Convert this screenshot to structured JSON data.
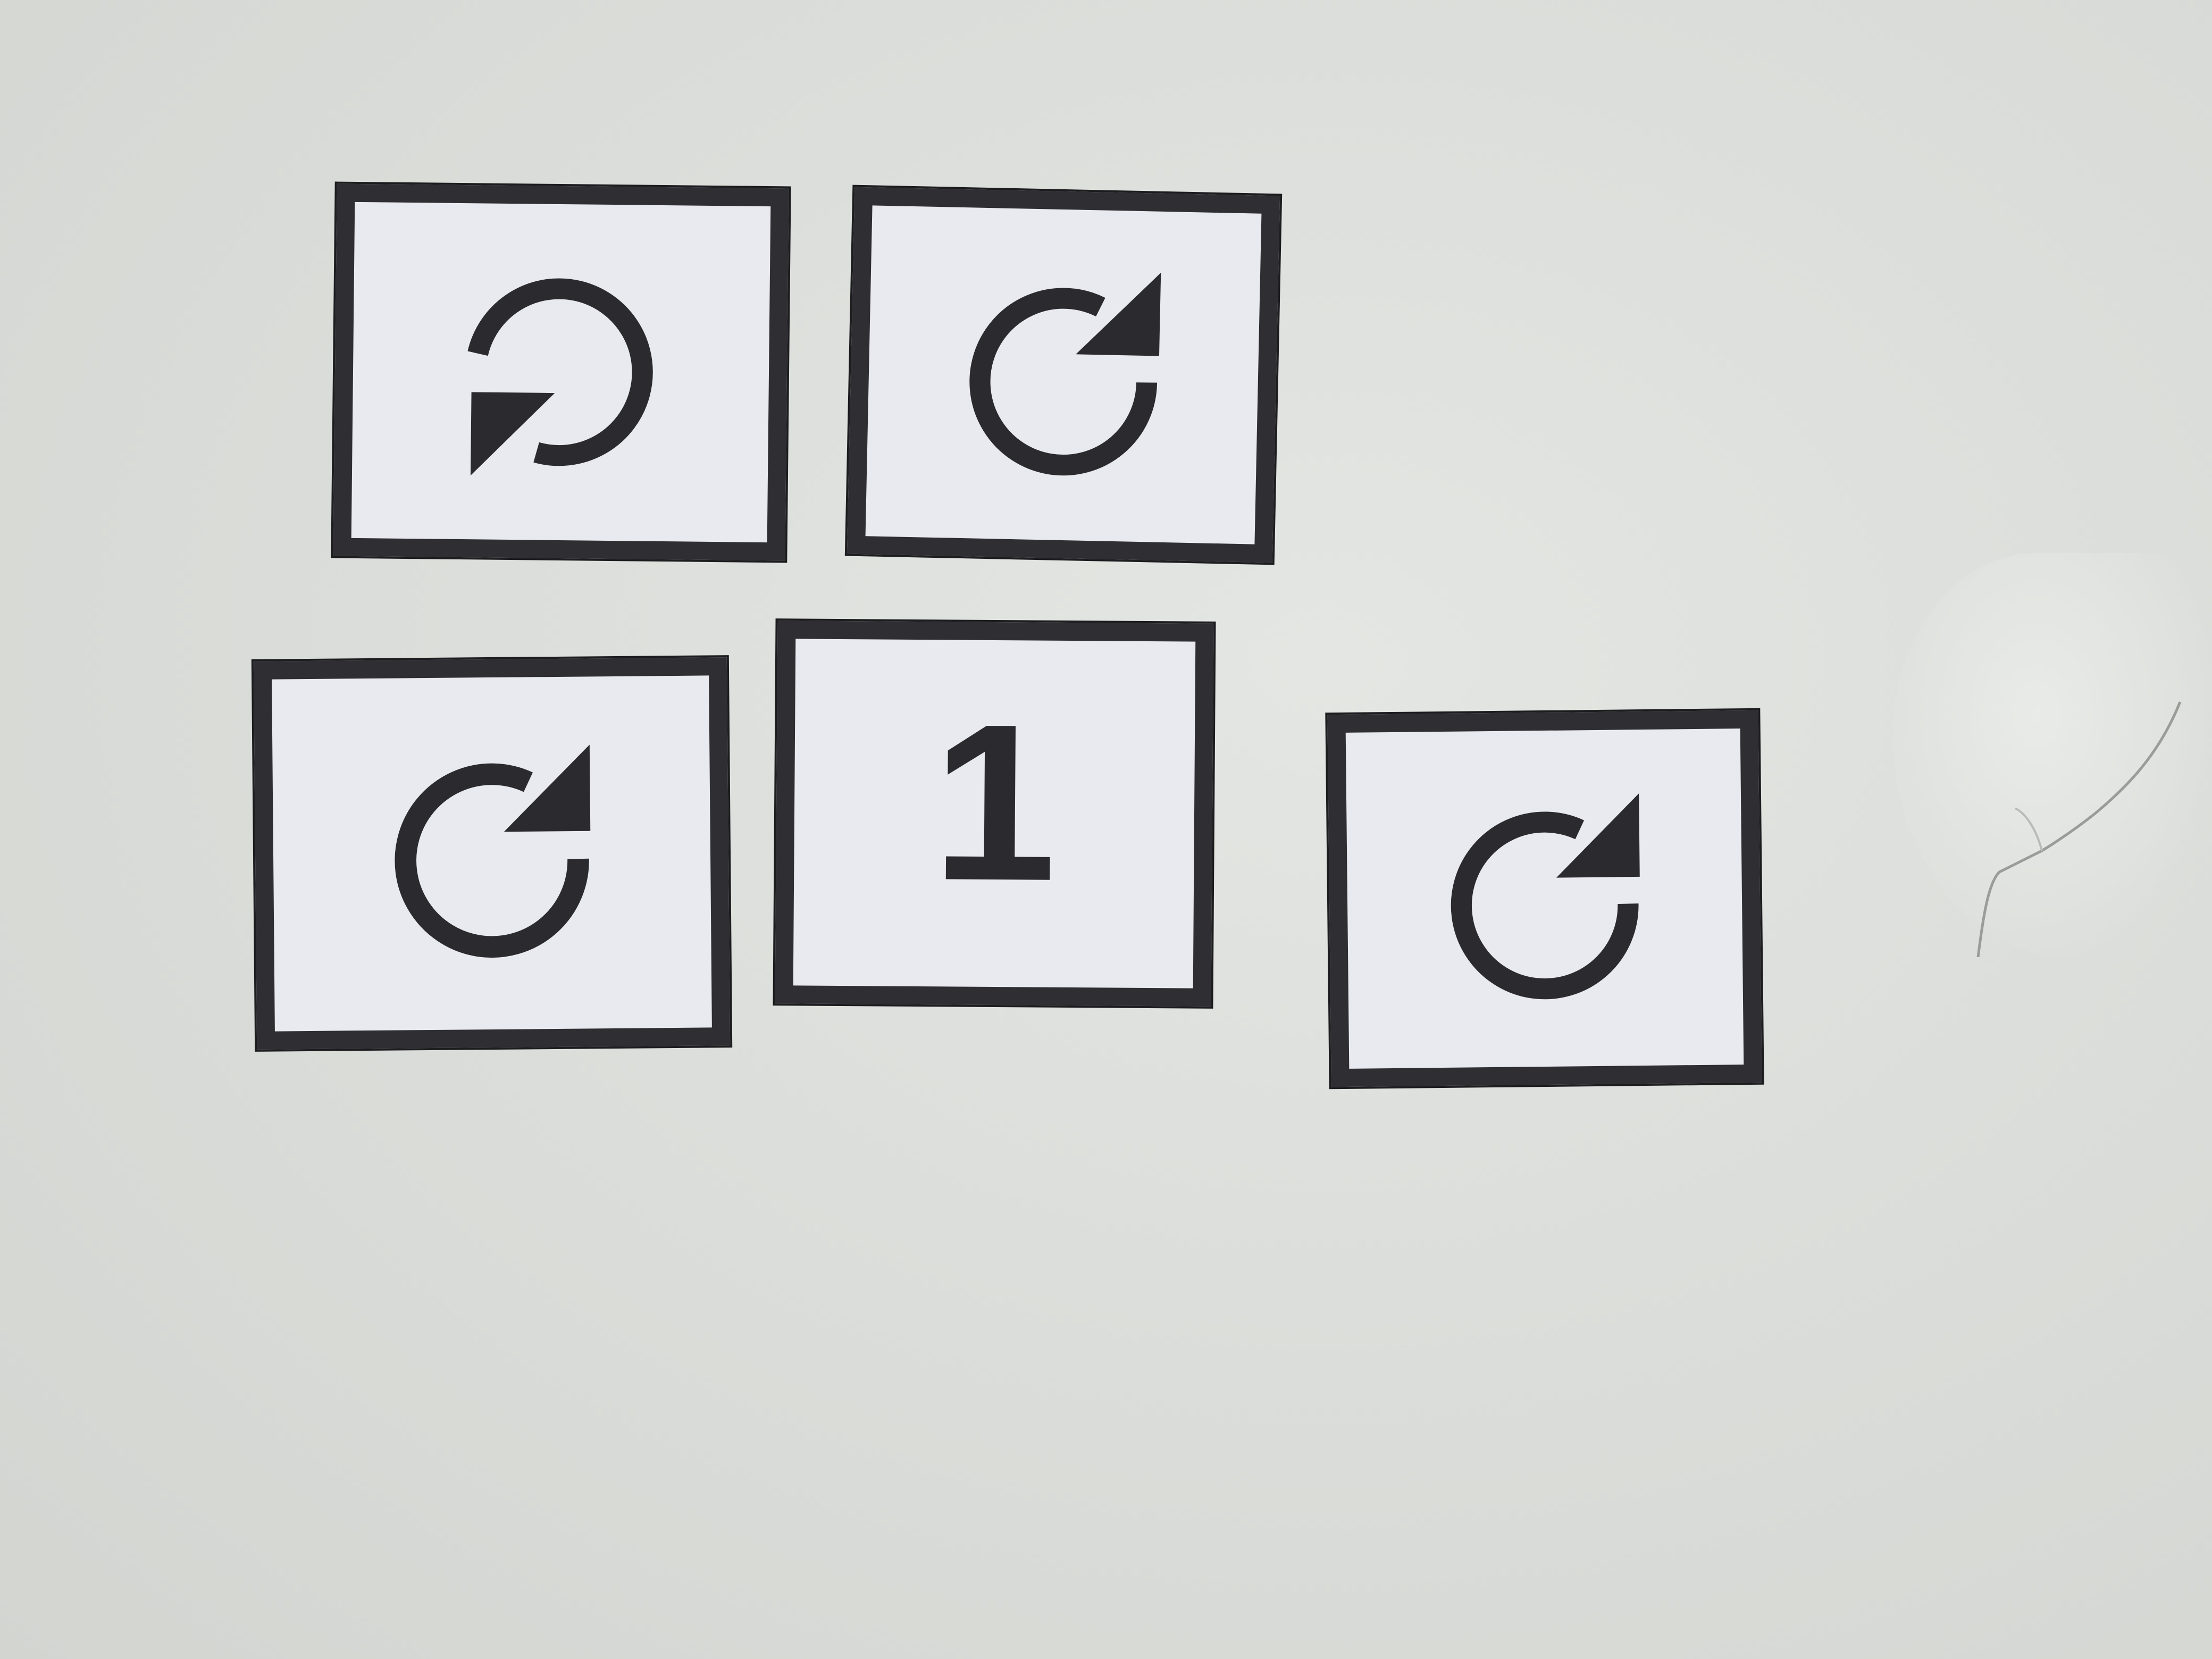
{
  "scene": {
    "background_color": "#dcdedb",
    "card_fill": "#e9e9f0",
    "card_border": "#2f2f33"
  },
  "cards": [
    {
      "symbol": "rotate-counterclockwise-icon"
    },
    {
      "symbol": "rotate-clockwise-icon"
    },
    {
      "symbol": "rotate-clockwise-icon"
    },
    {
      "symbol": "number",
      "text": "1"
    },
    {
      "symbol": "rotate-clockwise-icon"
    }
  ]
}
